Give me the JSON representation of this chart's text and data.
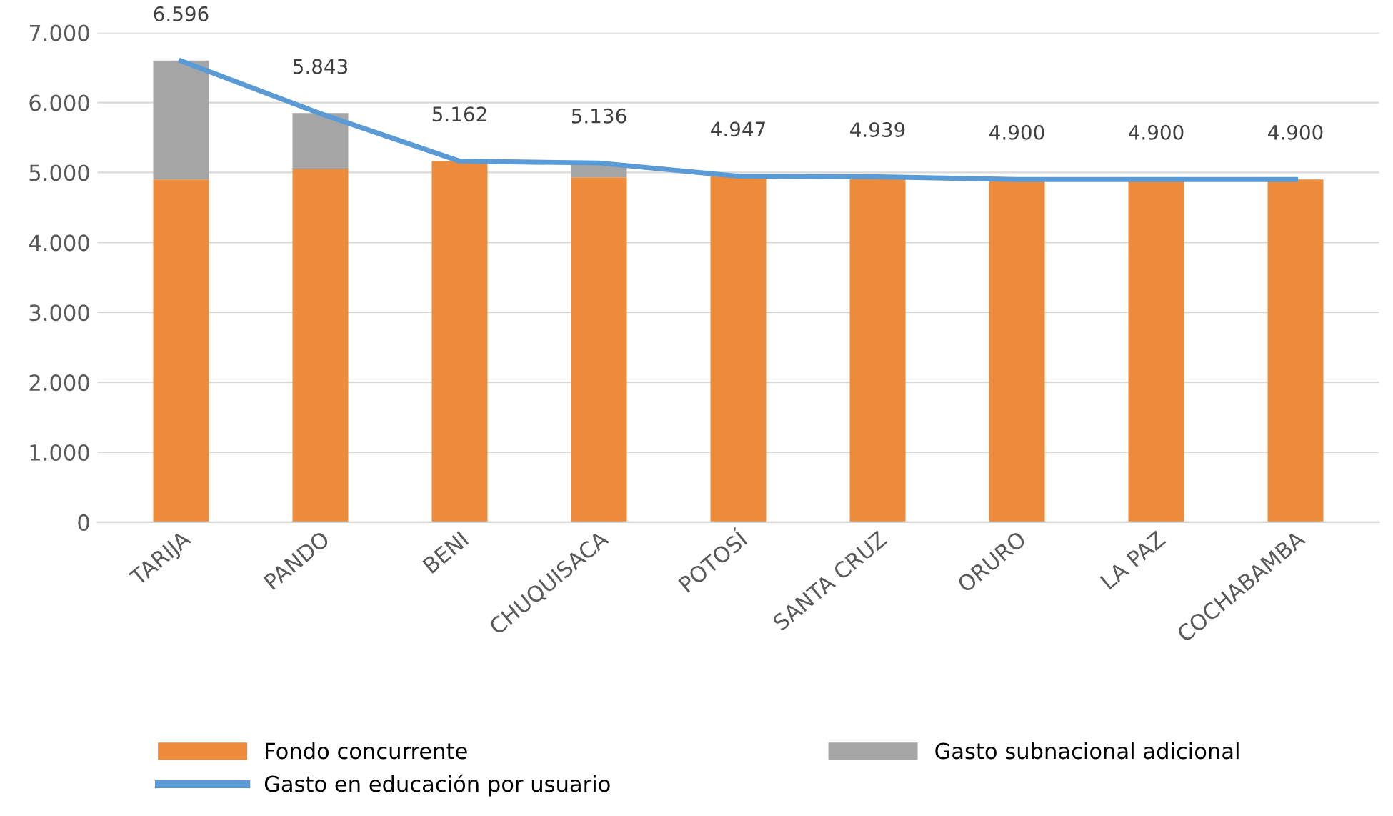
{
  "chart_data": {
    "type": "bar",
    "stacked": true,
    "categories": [
      "TARIJA",
      "PANDO",
      "BENI",
      "CHUQUISACA",
      "POTOSÍ",
      "SANTA CRUZ",
      "ORURO",
      "LA PAZ",
      "COCHABAMBA"
    ],
    "series": [
      {
        "name": "Fondo concurrente",
        "color": "#ed8b3a",
        "values": [
          4900,
          5050,
          5162,
          4930,
          4947,
          4939,
          4900,
          4900,
          4900
        ]
      },
      {
        "name": "Gasto subnacional adicional",
        "color": "#a5a5a5",
        "values": [
          1700,
          800,
          0,
          206,
          0,
          0,
          0,
          0,
          0
        ]
      },
      {
        "name": "Gasto en educación por usuario",
        "type": "line",
        "color": "#5b9bd5",
        "values": [
          6596,
          5843,
          5162,
          5136,
          4947,
          4939,
          4900,
          4900,
          4900
        ],
        "value_labels": [
          "6.596",
          "5.843",
          "5.162",
          "5.136",
          "4.947",
          "4.939",
          "4.900",
          "4.900",
          "4.900"
        ]
      }
    ],
    "ylim": [
      0,
      7000
    ],
    "yticks": [
      0,
      {
        "value": 1000,
        "label": "1.000"
      },
      {
        "value": 2000,
        "label": "2.000"
      },
      {
        "value": 3000,
        "label": "3.000"
      },
      {
        "value": 4000,
        "label": "4.000"
      },
      {
        "value": 5000,
        "label": "5.000"
      },
      {
        "value": 6000,
        "label": "6.000"
      },
      {
        "value": 7000,
        "label": "7.000"
      }
    ],
    "grid": "y",
    "legend": "bottom",
    "marker": "none",
    "line_style": "solid"
  }
}
